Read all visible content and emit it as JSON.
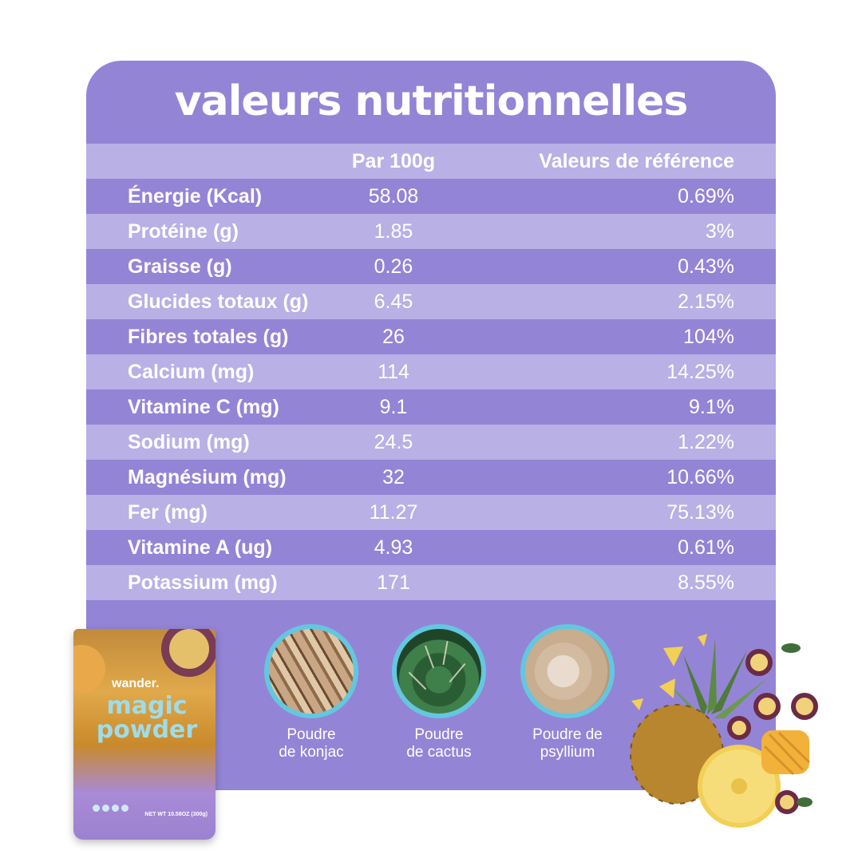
{
  "title": "valeurs nutritionnelles",
  "table": {
    "headers": {
      "name": "",
      "per100": "Par 100g",
      "reference": "Valeurs de référence"
    },
    "rows": [
      {
        "name": "Énergie (Kcal)",
        "value": "58.08",
        "ref": "0.69%"
      },
      {
        "name": "Protéine (g)",
        "value": "1.85",
        "ref": "3%"
      },
      {
        "name": "Graisse (g)",
        "value": "0.26",
        "ref": "0.43%"
      },
      {
        "name": "Glucides totaux (g)",
        "value": "6.45",
        "ref": "2.15%"
      },
      {
        "name": "Fibres totales (g)",
        "value": "26",
        "ref": "104%"
      },
      {
        "name": "Calcium (mg)",
        "value": "114",
        "ref": "14.25%"
      },
      {
        "name": "Vitamine C (mg)",
        "value": "9.1",
        "ref": "9.1%"
      },
      {
        "name": "Sodium (mg)",
        "value": "24.5",
        "ref": "1.22%"
      },
      {
        "name": "Magnésium (mg)",
        "value": "32",
        "ref": "10.66%"
      },
      {
        "name": "Fer (mg)",
        "value": "11.27",
        "ref": "75.13%"
      },
      {
        "name": "Vitamine A (ug)",
        "value": "4.93",
        "ref": "0.61%"
      },
      {
        "name": "Potassium (mg)",
        "value": "171",
        "ref": "8.55%"
      }
    ]
  },
  "ingredients": [
    {
      "label_line1": "Poudre",
      "label_line2": "de konjac",
      "icon": "konjac-icon"
    },
    {
      "label_line1": "Poudre",
      "label_line2": "de cactus",
      "icon": "cactus-icon"
    },
    {
      "label_line1": "Poudre de",
      "label_line2": "psyllium",
      "icon": "psyllium-icon"
    }
  ],
  "package": {
    "brand": "wander.",
    "name_line1": "magic",
    "name_line2": "powder",
    "net_weight": "NET WT 10.58OZ (300g)"
  },
  "colors": {
    "card": "#9484d6",
    "row_light": "#b9b0e6",
    "ring": "#63c7e0",
    "text": "#ffffff"
  }
}
